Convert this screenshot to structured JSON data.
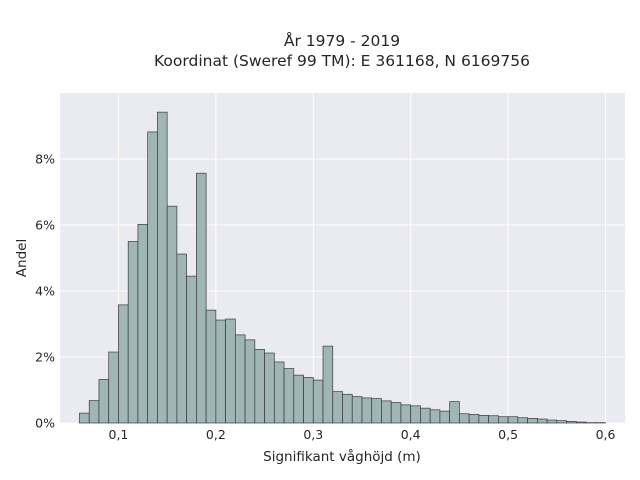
{
  "chart_data": {
    "type": "bar",
    "title": "År 1979 - 2019",
    "subtitle": "Koordinat (Sweref 99 TM): E 361168, N 6169756",
    "xlabel": "Signifikant våghöjd (m)",
    "ylabel": "Andel",
    "xlim": [
      0.04,
      0.62
    ],
    "ylim": [
      0,
      0.1
    ],
    "x_ticks": [
      {
        "value": 0.1,
        "label": "0,1"
      },
      {
        "value": 0.2,
        "label": "0,2"
      },
      {
        "value": 0.3,
        "label": "0,3"
      },
      {
        "value": 0.4,
        "label": "0,4"
      },
      {
        "value": 0.5,
        "label": "0,5"
      },
      {
        "value": 0.6,
        "label": "0,6"
      }
    ],
    "y_ticks": [
      {
        "value": 0,
        "label": "0%"
      },
      {
        "value": 0.02,
        "label": "2%"
      },
      {
        "value": 0.04,
        "label": "4%"
      },
      {
        "value": 0.06,
        "label": "6%"
      },
      {
        "value": 0.08,
        "label": "8%"
      }
    ],
    "grid": true,
    "bin_edges": [
      0.06,
      0.07,
      0.08,
      0.09,
      0.1,
      0.11,
      0.12,
      0.13,
      0.14,
      0.15,
      0.16,
      0.17,
      0.18,
      0.19,
      0.2,
      0.21,
      0.22,
      0.23,
      0.24,
      0.25,
      0.26,
      0.27,
      0.28,
      0.29,
      0.3,
      0.31,
      0.32,
      0.33,
      0.34,
      0.35,
      0.36,
      0.37,
      0.38,
      0.39,
      0.4,
      0.41,
      0.42,
      0.43,
      0.44,
      0.45,
      0.46,
      0.47,
      0.48,
      0.49,
      0.5,
      0.51,
      0.52,
      0.53,
      0.54,
      0.55,
      0.56,
      0.57,
      0.58,
      0.59,
      0.6
    ],
    "values": [
      0.003,
      0.0068,
      0.0132,
      0.0215,
      0.0358,
      0.055,
      0.0602,
      0.0882,
      0.0942,
      0.0657,
      0.0512,
      0.0445,
      0.0757,
      0.0342,
      0.0312,
      0.0315,
      0.0267,
      0.0252,
      0.0223,
      0.0212,
      0.0185,
      0.0165,
      0.0145,
      0.0138,
      0.013,
      0.0233,
      0.0095,
      0.0087,
      0.008,
      0.0076,
      0.0074,
      0.0067,
      0.0062,
      0.0055,
      0.0052,
      0.0045,
      0.004,
      0.0036,
      0.0065,
      0.0028,
      0.0026,
      0.0023,
      0.0022,
      0.0019,
      0.0019,
      0.0016,
      0.0014,
      0.0012,
      0.0009,
      0.0007,
      0.0005,
      0.0003,
      0.0001,
      0.0001
    ],
    "colors": {
      "bar_fill": "#a0b6b6",
      "bar_edge": "#3a3a3a",
      "plot_bg": "#eaeaf2",
      "grid": "#ffffff",
      "text": "#262626"
    }
  }
}
